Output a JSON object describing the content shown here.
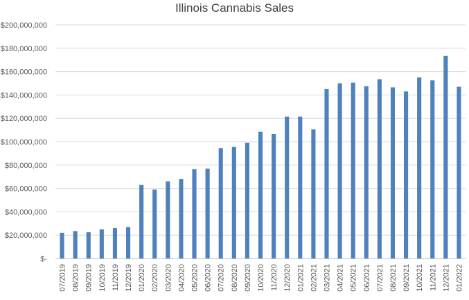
{
  "chart_data": {
    "type": "bar",
    "title": "Illinois Cannabis Sales",
    "xlabel": "",
    "ylabel": "",
    "ylim": [
      0,
      200000000
    ],
    "y_ticks": [
      0,
      20000000,
      40000000,
      60000000,
      80000000,
      100000000,
      120000000,
      140000000,
      160000000,
      180000000,
      200000000
    ],
    "y_tick_labels": [
      "$-",
      "$20,000,000",
      "$40,000,000",
      "$60,000,000",
      "$80,000,000",
      "$100,000,000",
      "$120,000,000",
      "$140,000,000",
      "$160,000,000",
      "$180,000,000",
      "$200,000,000"
    ],
    "grid": true,
    "legend": "none",
    "bar_color": "#4f81bd",
    "categories": [
      "07/2019",
      "08/2019",
      "09/2019",
      "10/2019",
      "11/2019",
      "12/2019",
      "01/2020",
      "02/2020",
      "03/2020",
      "04/2020",
      "05/2020",
      "06/2020",
      "07/2020",
      "08/2020",
      "09/2020",
      "10/2020",
      "11/2020",
      "12/2020",
      "01/2021",
      "02/2021",
      "03/2021",
      "04/2021",
      "05/2021",
      "06/2021",
      "07/2021",
      "08/2021",
      "09/2021",
      "10/2021",
      "11/2021",
      "12/2021",
      "01/2022"
    ],
    "values": [
      22000000,
      23500000,
      22500000,
      25000000,
      26000000,
      27000000,
      63000000,
      59000000,
      66000000,
      68000000,
      76500000,
      77000000,
      94500000,
      95500000,
      99000000,
      108500000,
      106500000,
      121500000,
      121500000,
      110500000,
      145000000,
      150000000,
      150500000,
      147500000,
      153500000,
      146500000,
      143000000,
      155000000,
      152500000,
      173500000,
      147000000
    ]
  }
}
